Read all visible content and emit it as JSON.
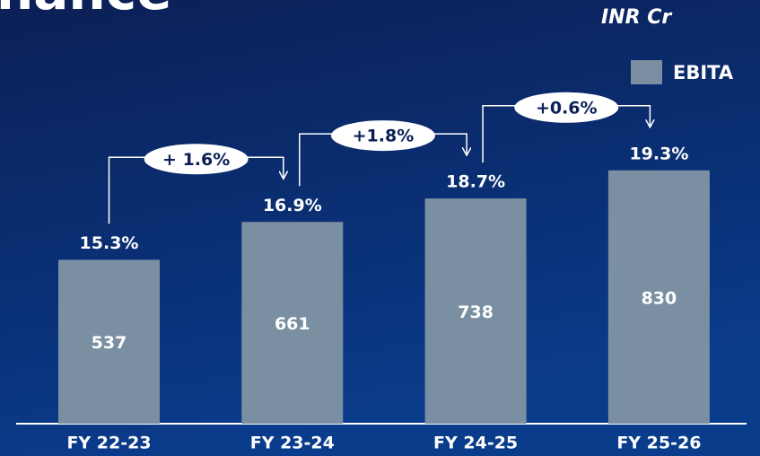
{
  "chart_data": {
    "type": "bar",
    "title": "nance",
    "unit": "INR Cr",
    "legend": "EBITA",
    "categories": [
      "FY 22-23",
      "FY 23-24",
      "FY 24-25",
      "FY 25-26"
    ],
    "values": [
      537,
      661,
      738,
      830
    ],
    "color": "#7b8fa3",
    "ylim": [
      0,
      1000
    ],
    "margin_labels": [
      "15.3%",
      "16.9%",
      "18.7%",
      "19.3%"
    ],
    "change_labels": [
      "+ 1.6%",
      "+1.8%",
      "+0.6%"
    ]
  }
}
